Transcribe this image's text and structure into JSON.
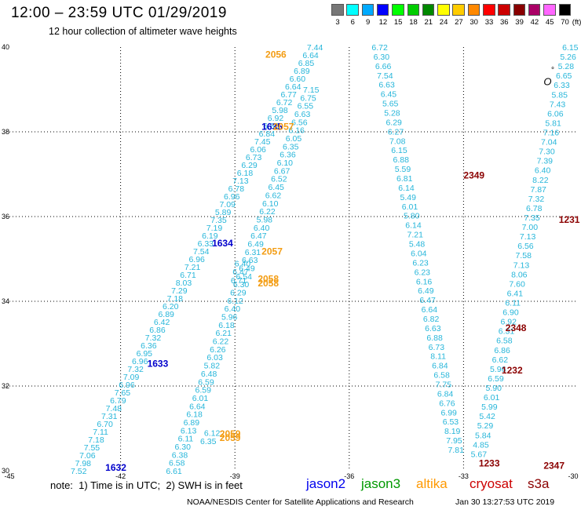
{
  "header": {
    "title": "12:00 – 23:59 UTC 01/29/2019",
    "subtitle": "12 hour collection of altimeter wave heights"
  },
  "colorbar": {
    "labels": [
      "3",
      "6",
      "9",
      "12",
      "15",
      "18",
      "21",
      "24",
      "27",
      "30",
      "33",
      "36",
      "39",
      "42",
      "45",
      "70"
    ],
    "unit": "(ft)",
    "colors": [
      "#777777",
      "#00ffff",
      "#00aaff",
      "#0000ff",
      "#00ff00",
      "#00cc00",
      "#008800",
      "#ffff00",
      "#ffcc00",
      "#ff8800",
      "#ff0000",
      "#cc0000",
      "#880000",
      "#aa0066",
      "#ff66ff",
      "#000000"
    ]
  },
  "map": {
    "lon_ticks": [
      "-45",
      "-42",
      "-39",
      "-36",
      "-33",
      "-30"
    ],
    "lat_ticks": [
      "40",
      "38",
      "36",
      "34",
      "32",
      "30"
    ],
    "lon_range": [
      -45,
      -30
    ],
    "lat_range": [
      30,
      40
    ],
    "grid": "dotted",
    "land_label": "O",
    "land_label_secondary": "°"
  },
  "passes": [
    {
      "name": "jason2-1632",
      "values": [
        "7.52",
        "7.98",
        "7.06",
        "7.55",
        "7.18",
        "7.11",
        "6.70",
        "7.31",
        "7.48",
        "6.79",
        "7.65",
        "6.96",
        "7.09",
        "7.32",
        "6.96",
        "6.95",
        "6.36",
        "7.32",
        "6.86",
        "6.42",
        "6.89",
        "6.20",
        "7.18",
        "7.29",
        "8.03",
        "6.71",
        "7.21",
        "6.96",
        "7.54",
        "6.33",
        "6.19",
        "7.19",
        "7.35",
        "5.89",
        "7.09",
        "6.96",
        "6.78",
        "7.13",
        "6.18",
        "6.29",
        "6.73",
        "6.06",
        "7.45",
        "6.84",
        "6.80",
        "6.92",
        "5.98",
        "6.72",
        "6.77",
        "6.64",
        "6.60",
        "6.89",
        "6.85",
        "6.64",
        "7.44"
      ],
      "start": [
        -43.1,
        30.0
      ],
      "end": [
        -36.9,
        40.0
      ]
    },
    {
      "name": "jason2-1634",
      "values": [
        "6.61",
        "6.58",
        "6.38",
        "6.30",
        "6.11",
        "6.13",
        "6.89",
        "6.18",
        "6.64",
        "6.01",
        "6.59",
        "6.59",
        "6.48",
        "5.82",
        "6.03",
        "6.26",
        "6.22",
        "6.21",
        "6.18",
        "5.96",
        "6.40",
        "6.12",
        "6.29",
        "6.30",
        "6.54",
        "6.49",
        "6.63",
        "6.31",
        "6.49",
        "6.47",
        "6.40",
        "5.98",
        "6.22",
        "6.10",
        "6.62",
        "6.45",
        "6.52",
        "6.67",
        "6.10",
        "6.36",
        "6.35",
        "6.05",
        "6.16",
        "6.56",
        "6.63",
        "6.55",
        "6.75",
        "7.15"
      ],
      "start": [
        -40.6,
        30.0
      ],
      "end": [
        -37.0,
        39.0
      ]
    },
    {
      "name": "altika-east",
      "values": [
        "6.72",
        "6.30",
        "6.66",
        "7.54",
        "6.63",
        "6.45",
        "5.65",
        "5.28",
        "6.29",
        "6.27",
        "7.08",
        "6.15",
        "6.88",
        "5.59",
        "6.81",
        "6.14",
        "5.49",
        "6.01",
        "5.80",
        "6.14",
        "7.21",
        "5.48",
        "6.04",
        "6.23",
        "6.23",
        "6.16",
        "6.49",
        "6.47",
        "6.64",
        "6.82",
        "6.63",
        "6.88",
        "6.73",
        "8.11",
        "6.84",
        "6.58",
        "7.75",
        "6.84",
        "6.76",
        "6.99",
        "6.53",
        "8.19",
        "7.95",
        "7.81"
      ],
      "start": [
        -35.2,
        40.0
      ],
      "end": [
        -33.2,
        30.5
      ]
    },
    {
      "name": "cryosat-east",
      "values": [
        "6.15",
        "5.26",
        "5.28",
        "6.65",
        "6.33",
        "5.85",
        "7.43",
        "6.06",
        "5.81",
        "7.16",
        "7.04",
        "7.30",
        "7.39",
        "6.40",
        "8.22",
        "7.87",
        "7.32",
        "6.78",
        "7.35",
        "7.00",
        "7.13",
        "6.56",
        "7.58",
        "7.13",
        "8.06",
        "7.60",
        "6.41",
        "6.11",
        "6.90",
        "6.92",
        "6.31",
        "6.58",
        "6.86",
        "6.62",
        "5.96",
        "6.59",
        "5.90",
        "6.01",
        "5.99",
        "5.42",
        "5.29",
        "5.84",
        "4.85",
        "5.67"
      ],
      "start": [
        -30.2,
        40.0
      ],
      "end": [
        -32.6,
        30.4
      ]
    },
    {
      "name": "altika-2058",
      "values": [
        "6.40",
        "6.47",
        "6.71"
      ],
      "start": [
        -38.8,
        34.9
      ],
      "end": [
        -38.9,
        34.5
      ]
    },
    {
      "name": "altika-2059",
      "values": [
        "6.12",
        "6.35"
      ],
      "start": [
        -39.6,
        30.9
      ],
      "end": [
        -39.7,
        30.7
      ]
    }
  ],
  "time_labels": [
    {
      "text": "2056",
      "color": "#f39c12",
      "lon": -38.2,
      "lat": 39.75
    },
    {
      "text": "1635",
      "color": "#0000cc",
      "lon": -38.3,
      "lat": 38.05
    },
    {
      "text": "2057",
      "color": "#f39c12",
      "lon": -38.0,
      "lat": 38.05
    },
    {
      "text": "1634",
      "color": "#0000cc",
      "lon": -39.6,
      "lat": 35.3
    },
    {
      "text": "2057",
      "color": "#f39c12",
      "lon": -38.3,
      "lat": 35.1
    },
    {
      "text": "2058",
      "color": "#f39c12",
      "lon": -38.4,
      "lat": 34.45
    },
    {
      "text": "2058",
      "color": "#f39c12",
      "lon": -38.4,
      "lat": 34.35
    },
    {
      "text": "1633",
      "color": "#0000cc",
      "lon": -41.3,
      "lat": 32.45
    },
    {
      "text": "1632",
      "color": "#0000cc",
      "lon": -42.4,
      "lat": 30.0
    },
    {
      "text": "2059",
      "color": "#f39c12",
      "lon": -39.4,
      "lat": 30.8
    },
    {
      "text": "2059",
      "color": "#f39c12",
      "lon": -39.4,
      "lat": 30.7
    },
    {
      "text": "2349",
      "color": "#8b0000",
      "lon": -33.0,
      "lat": 36.9
    },
    {
      "text": "1231",
      "color": "#8b0000",
      "lon": -30.5,
      "lat": 35.85
    },
    {
      "text": "2348",
      "color": "#8b0000",
      "lon": -31.9,
      "lat": 33.3
    },
    {
      "text": "1232",
      "color": "#8b0000",
      "lon": -32.0,
      "lat": 32.3
    },
    {
      "text": "1233",
      "color": "#8b0000",
      "lon": -32.6,
      "lat": 30.1
    },
    {
      "text": "2347",
      "color": "#8b0000",
      "lon": -30.9,
      "lat": 30.05
    }
  ],
  "footer": {
    "note": "note:  1) Time is in UTC;  2) SWH is in feet",
    "satellites": [
      {
        "name": "jason2",
        "color": "#0000ee"
      },
      {
        "name": "jason3",
        "color": "#009900"
      },
      {
        "name": "altika",
        "color": "#ff9900"
      },
      {
        "name": "cryosat",
        "color": "#cc0000"
      },
      {
        "name": "s3a",
        "color": "#8b0000"
      }
    ],
    "credit": "NOAA/NESDIS Center for Satellite Applications and Research",
    "timestamp": "Jan 30 13:27:53 UTC 2019"
  }
}
